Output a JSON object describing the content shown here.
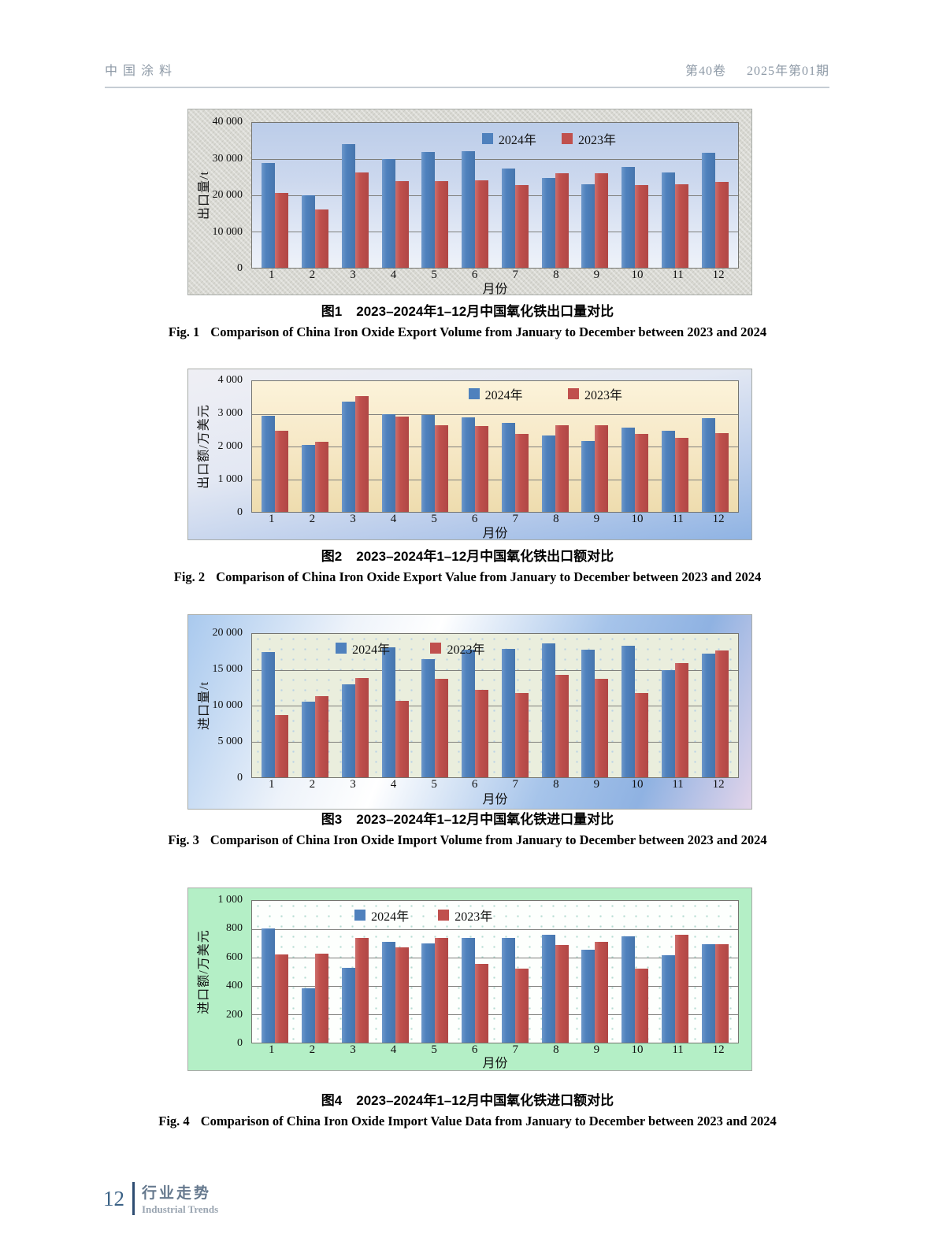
{
  "header": {
    "journal_title": "中国涂料",
    "volume": "第40卷",
    "issue": "2025年第01期"
  },
  "footer": {
    "page_number": "12",
    "section_cn": "行业走势",
    "section_en": "Industrial Trends"
  },
  "chart_data": [
    {
      "type": "bar",
      "ylabel": "出口量/t",
      "xlabel": "月份",
      "ymax": 40000,
      "ylim": [
        0,
        40000
      ],
      "grid": true,
      "legend_position": "top-center",
      "yticks": [
        "40 000",
        "30 000",
        "20 000",
        "10 000",
        "0"
      ],
      "categories": [
        "1",
        "2",
        "3",
        "4",
        "5",
        "6",
        "7",
        "8",
        "9",
        "10",
        "11",
        "12"
      ],
      "series": [
        {
          "name": "2024年",
          "color": "#4f81bd",
          "values": [
            29000,
            20000,
            34200,
            30000,
            32000,
            32200,
            27500,
            24700,
            23100,
            27900,
            26300,
            31800
          ]
        },
        {
          "name": "2023年",
          "color": "#c0504d",
          "values": [
            20600,
            16000,
            26300,
            24000,
            23900,
            24200,
            22800,
            26100,
            26100,
            22800,
            23000,
            23600
          ]
        }
      ],
      "caption_cn_label": "图1",
      "caption_cn_text": "2023–2024年1–12月中国氧化铁出口量对比",
      "caption_en_label": "Fig. 1",
      "caption_en_text": "Comparison of China Iron Oxide Export Volume from January to December between 2023 and 2024"
    },
    {
      "type": "bar",
      "ylabel": "出口额/万美元",
      "xlabel": "月份",
      "ymax": 4000,
      "ylim": [
        0,
        4000
      ],
      "grid": true,
      "legend_position": "top-center",
      "yticks": [
        "4 000",
        "3 000",
        "2 000",
        "1 000",
        "0"
      ],
      "categories": [
        "1",
        "2",
        "3",
        "4",
        "5",
        "6",
        "7",
        "8",
        "9",
        "10",
        "11",
        "12"
      ],
      "series": [
        {
          "name": "2024年",
          "color": "#4f81bd",
          "values": [
            2930,
            2050,
            3380,
            3000,
            2960,
            2900,
            2720,
            2330,
            2180,
            2570,
            2480,
            2860
          ]
        },
        {
          "name": "2023年",
          "color": "#c0504d",
          "values": [
            2480,
            2140,
            3550,
            2920,
            2650,
            2630,
            2380,
            2640,
            2640,
            2380,
            2270,
            2420
          ]
        }
      ],
      "caption_cn_label": "图2",
      "caption_cn_text": "2023–2024年1–12月中国氧化铁出口额对比",
      "caption_en_label": "Fig. 2",
      "caption_en_text": "Comparison of China Iron Oxide Export Value from January to December between 2023 and 2024"
    },
    {
      "type": "bar",
      "ylabel": "进口量/t",
      "xlabel": "月份",
      "ymax": 20000,
      "ylim": [
        0,
        20000
      ],
      "grid": true,
      "legend_position": "top-left",
      "yticks": [
        "20 000",
        "15 000",
        "10 000",
        "5 000",
        "0"
      ],
      "categories": [
        "1",
        "2",
        "3",
        "4",
        "5",
        "6",
        "7",
        "8",
        "9",
        "10",
        "11",
        "12"
      ],
      "series": [
        {
          "name": "2024年",
          "color": "#4f81bd",
          "values": [
            17500,
            10500,
            13000,
            18100,
            16500,
            17800,
            17900,
            18700,
            17800,
            18400,
            15000,
            17300
          ]
        },
        {
          "name": "2023年",
          "color": "#c0504d",
          "values": [
            8700,
            11300,
            13800,
            10700,
            13700,
            12200,
            11800,
            14300,
            13700,
            11800,
            15900,
            17700
          ]
        }
      ],
      "caption_cn_label": "图3",
      "caption_cn_text": "2023–2024年1–12月中国氧化铁进口量对比",
      "caption_en_label": "Fig. 3",
      "caption_en_text": "Comparison of China Iron Oxide Import Volume from January to December between 2023 and 2024"
    },
    {
      "type": "bar",
      "ylabel": "进口额/万美元",
      "xlabel": "月份",
      "ymax": 1000,
      "ylim": [
        0,
        1000
      ],
      "grid": true,
      "legend_position": "top-left",
      "yticks": [
        "1 000",
        "800",
        "600",
        "400",
        "200",
        "0"
      ],
      "categories": [
        "1",
        "2",
        "3",
        "4",
        "5",
        "6",
        "7",
        "8",
        "9",
        "10",
        "11",
        "12"
      ],
      "series": [
        {
          "name": "2024年",
          "color": "#4f81bd",
          "values": [
            805,
            383,
            528,
            710,
            700,
            737,
            740,
            760,
            655,
            750,
            618,
            692
          ]
        },
        {
          "name": "2023年",
          "color": "#c0504d",
          "values": [
            620,
            630,
            737,
            670,
            740,
            553,
            520,
            688,
            710,
            520,
            760,
            692
          ]
        }
      ],
      "caption_cn_label": "图4",
      "caption_cn_text": "2023–2024年1–12月中国氧化铁进口额对比",
      "caption_en_label": "Fig. 4",
      "caption_en_text": "Comparison of China Iron Oxide Import Value Data from January to December between 2023 and 2024"
    }
  ]
}
